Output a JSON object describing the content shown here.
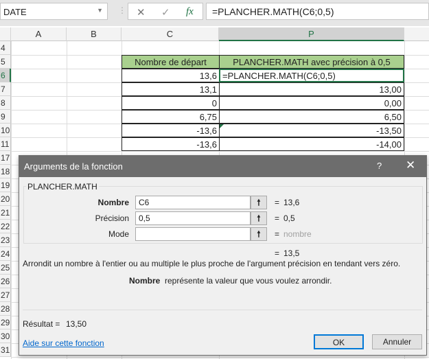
{
  "formula_bar": {
    "name_box": "DATE",
    "cancel_icon": "✕",
    "enter_icon": "✓",
    "fx_label": "fx",
    "formula": "=PLANCHER.MATH(C6;0,5)"
  },
  "columns": [
    "A",
    "B",
    "C",
    "P"
  ],
  "rows": [
    "4",
    "5",
    "6",
    "7",
    "8",
    "9",
    "10",
    "11",
    "17",
    "18",
    "19",
    "20",
    "21",
    "22",
    "23",
    "24",
    "25",
    "26",
    "27",
    "28",
    "29",
    "30",
    "31"
  ],
  "table": {
    "headers": [
      "Nombre de départ",
      "PLANCHER.MATH avec précision à 0,5"
    ],
    "data": [
      [
        "13,6",
        "=PLANCHER.MATH(C6;0,5)"
      ],
      [
        "13,1",
        "13,00"
      ],
      [
        "0",
        "0,00"
      ],
      [
        "6,75",
        "6,50"
      ],
      [
        "-13,6",
        "-13,50"
      ],
      [
        "-13,6",
        "-14,00"
      ]
    ],
    "header_color": "#a9d08e"
  },
  "dialog": {
    "title": "Arguments de la fonction",
    "help": "?",
    "close": "✕",
    "function_name": "PLANCHER.MATH",
    "args": [
      {
        "label": "Nombre",
        "value": "C6",
        "result": "13,6"
      },
      {
        "label": "Précision",
        "value": "0,5",
        "result": "0,5"
      },
      {
        "label": "Mode",
        "value": "",
        "result": "nombre"
      }
    ],
    "eq": "=",
    "formula_result": "13,5",
    "description": "Arrondit un nombre à l'entier ou au multiple le plus proche de l'argument précision en tendant vers zéro.",
    "arg_name": "Nombre",
    "arg_description": "représente la valeur que vous voulez arrondir.",
    "result_label": "Résultat =",
    "result_value": "13,50",
    "help_link": "Aide sur cette fonction",
    "ok": "OK",
    "cancel": "Annuler"
  }
}
